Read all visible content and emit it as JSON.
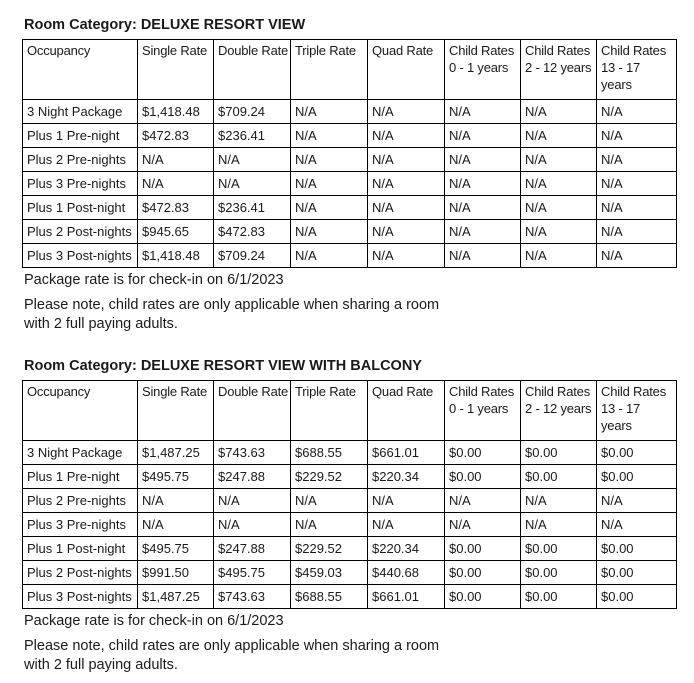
{
  "page": {
    "background_color": "#ffffff",
    "text_color": "#1a1a1a",
    "table_border_color": "#000000"
  },
  "sections": [
    {
      "heading": "Room Category: DELUXE RESORT VIEW",
      "table": {
        "column_header_lines": [
          [
            "Occupancy"
          ],
          [
            "Single Rate"
          ],
          [
            "Double Rate"
          ],
          [
            "Triple Rate"
          ],
          [
            "Quad Rate"
          ],
          [
            "Child Rates",
            "0 - 1 years"
          ],
          [
            "Child Rates",
            "2 - 12 years"
          ],
          [
            "Child Rates",
            "13 - 17",
            "years"
          ]
        ],
        "rows": [
          [
            "3 Night Package",
            "$1,418.48",
            "$709.24",
            "N/A",
            "N/A",
            "N/A",
            "N/A",
            "N/A"
          ],
          [
            "Plus 1 Pre-night",
            "$472.83",
            "$236.41",
            "N/A",
            "N/A",
            "N/A",
            "N/A",
            "N/A"
          ],
          [
            "Plus 2 Pre-nights",
            "N/A",
            "N/A",
            "N/A",
            "N/A",
            "N/A",
            "N/A",
            "N/A"
          ],
          [
            "Plus 3 Pre-nights",
            "N/A",
            "N/A",
            "N/A",
            "N/A",
            "N/A",
            "N/A",
            "N/A"
          ],
          [
            "Plus 1 Post-night",
            "$472.83",
            "$236.41",
            "N/A",
            "N/A",
            "N/A",
            "N/A",
            "N/A"
          ],
          [
            "Plus 2 Post-nights",
            "$945.65",
            "$472.83",
            "N/A",
            "N/A",
            "N/A",
            "N/A",
            "N/A"
          ],
          [
            "Plus 3 Post-nights",
            "$1,418.48",
            "$709.24",
            "N/A",
            "N/A",
            "N/A",
            "N/A",
            "N/A"
          ]
        ]
      },
      "package_note": "Package rate is for check-in on 6/1/2023",
      "child_note_lines": [
        "Please note, child rates are only applicable when sharing a room",
        "with 2 full paying adults."
      ]
    },
    {
      "heading": "Room Category: DELUXE RESORT VIEW WITH BALCONY",
      "table": {
        "column_header_lines": [
          [
            "Occupancy"
          ],
          [
            "Single Rate"
          ],
          [
            "Double Rate"
          ],
          [
            "Triple Rate"
          ],
          [
            "Quad Rate"
          ],
          [
            "Child Rates",
            "0 - 1 years"
          ],
          [
            "Child Rates",
            "2 - 12 years"
          ],
          [
            "Child Rates",
            "13 - 17",
            "years"
          ]
        ],
        "rows": [
          [
            "3 Night Package",
            "$1,487.25",
            "$743.63",
            "$688.55",
            "$661.01",
            "$0.00",
            "$0.00",
            "$0.00"
          ],
          [
            "Plus 1 Pre-night",
            "$495.75",
            "$247.88",
            "$229.52",
            "$220.34",
            "$0.00",
            "$0.00",
            "$0.00"
          ],
          [
            "Plus 2 Pre-nights",
            "N/A",
            "N/A",
            "N/A",
            "N/A",
            "N/A",
            "N/A",
            "N/A"
          ],
          [
            "Plus 3 Pre-nights",
            "N/A",
            "N/A",
            "N/A",
            "N/A",
            "N/A",
            "N/A",
            "N/A"
          ],
          [
            "Plus 1 Post-night",
            "$495.75",
            "$247.88",
            "$229.52",
            "$220.34",
            "$0.00",
            "$0.00",
            "$0.00"
          ],
          [
            "Plus 2 Post-nights",
            "$991.50",
            "$495.75",
            "$459.03",
            "$440.68",
            "$0.00",
            "$0.00",
            "$0.00"
          ],
          [
            "Plus 3 Post-nights",
            "$1,487.25",
            "$743.63",
            "$688.55",
            "$661.01",
            "$0.00",
            "$0.00",
            "$0.00"
          ]
        ]
      },
      "package_note": "Package rate is for check-in on 6/1/2023",
      "child_note_lines": [
        "Please note, child rates are only applicable when sharing a room",
        "with 2 full paying adults."
      ]
    }
  ]
}
